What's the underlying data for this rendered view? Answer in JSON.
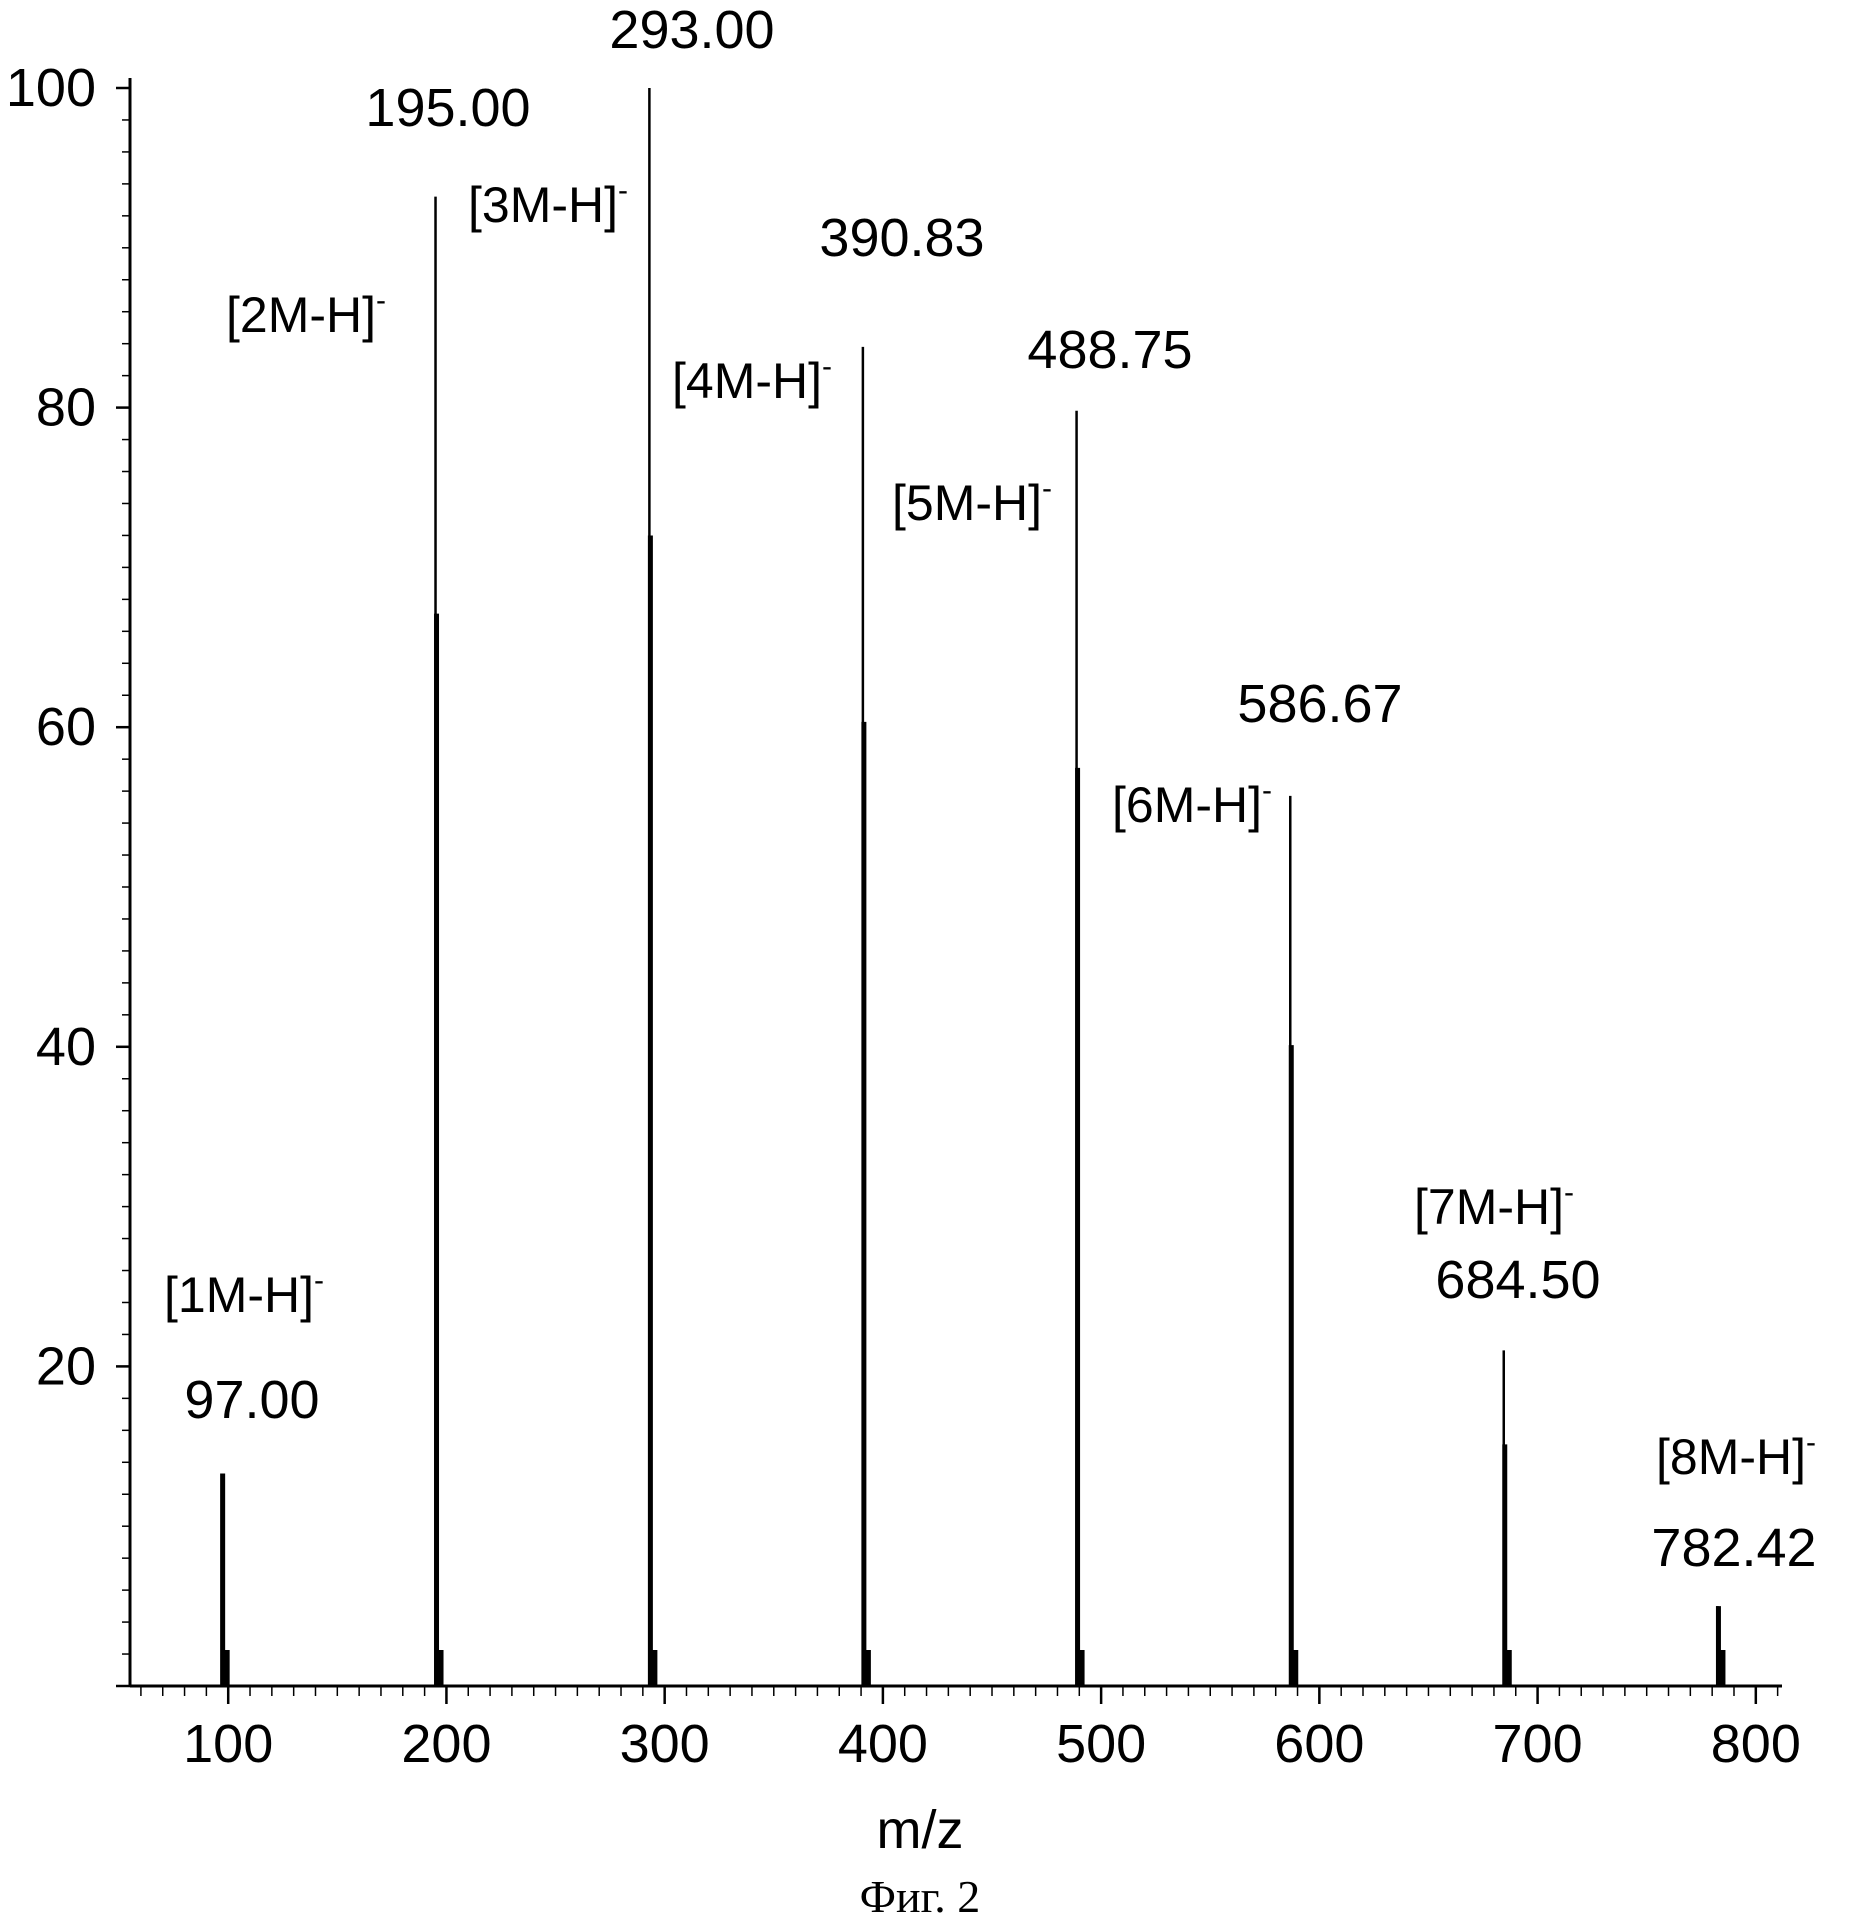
{
  "chart_data": {
    "type": "bar",
    "title": "",
    "xlabel": "m/z",
    "ylabel": "",
    "caption": "Фиг. 2",
    "xlim": [
      55,
      812
    ],
    "ylim": [
      0,
      100
    ],
    "xticks": [
      100,
      200,
      300,
      400,
      500,
      600,
      700,
      800
    ],
    "yticks": [
      20,
      40,
      60,
      80,
      100
    ],
    "grid": false,
    "peaks": [
      {
        "x": 97.0,
        "y": 13.3,
        "mz_label": "97.00",
        "ion_label": "[1M-H]",
        "ion_sup": "-"
      },
      {
        "x": 195.0,
        "y": 93.2,
        "mz_label": "195.00",
        "ion_label": "[2M-H]",
        "ion_sup": "-"
      },
      {
        "x": 293.0,
        "y": 100.0,
        "mz_label": "293.00",
        "ion_label": "[3M-H]",
        "ion_sup": "-"
      },
      {
        "x": 390.83,
        "y": 83.8,
        "mz_label": "390.83",
        "ion_label": "[4M-H]",
        "ion_sup": "-"
      },
      {
        "x": 488.75,
        "y": 79.8,
        "mz_label": "488.75",
        "ion_label": "[5M-H]",
        "ion_sup": "-"
      },
      {
        "x": 586.67,
        "y": 55.7,
        "mz_label": "586.67",
        "ion_label": "[6M-H]",
        "ion_sup": "-"
      },
      {
        "x": 684.5,
        "y": 21.0,
        "mz_label": "684.50",
        "ion_label": "[7M-H]",
        "ion_sup": "-"
      },
      {
        "x": 782.42,
        "y": 5.0,
        "mz_label": "782.42",
        "ion_label": "[8M-H]",
        "ion_sup": "-"
      }
    ]
  }
}
